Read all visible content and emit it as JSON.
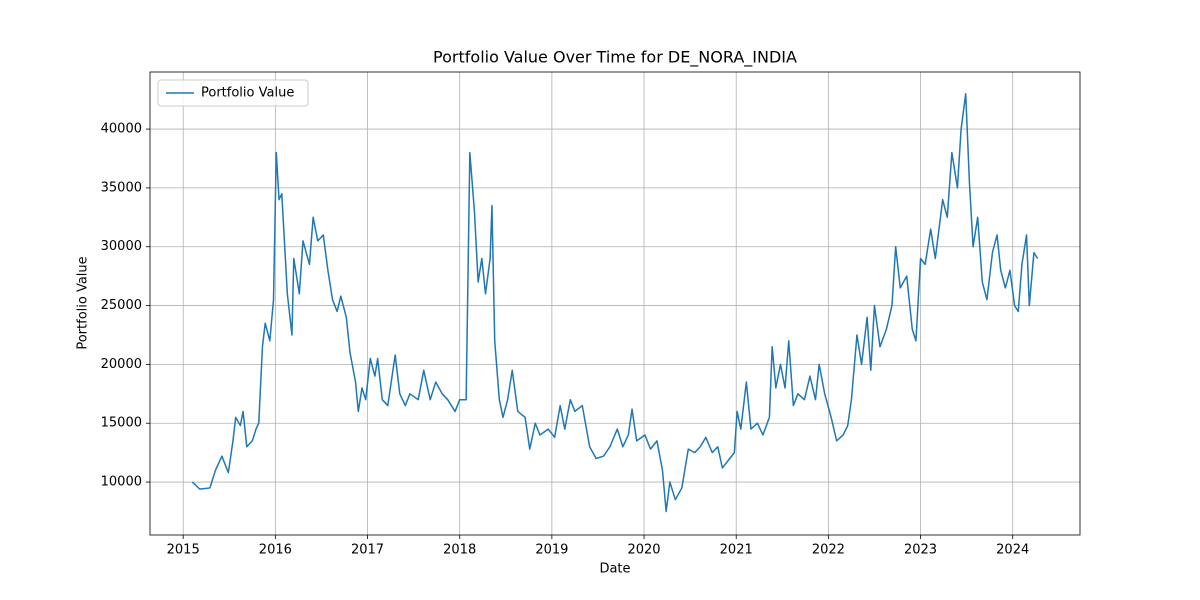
{
  "chart_data": {
    "type": "line",
    "title": "Portfolio Value Over Time for DE_NORA_INDIA",
    "x_label": "Date",
    "y_label": "Portfolio Value",
    "x": [
      2015.1,
      2015.18,
      2015.29,
      2015.35,
      2015.42,
      2015.49,
      2015.54,
      2015.57,
      2015.62,
      2015.65,
      2015.69,
      2015.75,
      2015.79,
      2015.82,
      2015.86,
      2015.89,
      2015.94,
      2015.98,
      2016.01,
      2016.04,
      2016.07,
      2016.13,
      2016.18,
      2016.2,
      2016.26,
      2016.3,
      2016.37,
      2016.41,
      2016.46,
      2016.52,
      2016.57,
      2016.62,
      2016.67,
      2016.71,
      2016.77,
      2016.81,
      2016.87,
      2016.9,
      2016.94,
      2016.98,
      2017.03,
      2017.08,
      2017.11,
      2017.16,
      2017.22,
      2017.3,
      2017.35,
      2017.41,
      2017.46,
      2017.55,
      2017.61,
      2017.68,
      2017.74,
      2017.81,
      2017.87,
      2017.95,
      2018.0,
      2018.07,
      2018.11,
      2018.16,
      2018.2,
      2018.24,
      2018.28,
      2018.33,
      2018.35,
      2018.38,
      2018.43,
      2018.47,
      2018.52,
      2018.57,
      2018.63,
      2018.71,
      2018.76,
      2018.82,
      2018.87,
      2018.96,
      2019.03,
      2019.09,
      2019.14,
      2019.2,
      2019.25,
      2019.33,
      2019.41,
      2019.48,
      2019.56,
      2019.63,
      2019.71,
      2019.77,
      2019.83,
      2019.87,
      2019.92,
      2020.01,
      2020.07,
      2020.14,
      2020.2,
      2020.24,
      2020.28,
      2020.34,
      2020.41,
      2020.48,
      2020.55,
      2020.61,
      2020.67,
      2020.74,
      2020.8,
      2020.85,
      2020.93,
      2020.98,
      2021.01,
      2021.05,
      2021.11,
      2021.16,
      2021.23,
      2021.29,
      2021.36,
      2021.39,
      2021.43,
      2021.48,
      2021.53,
      2021.57,
      2021.62,
      2021.67,
      2021.74,
      2021.8,
      2021.86,
      2021.9,
      2021.96,
      2022.03,
      2022.09,
      2022.16,
      2022.21,
      2022.25,
      2022.31,
      2022.36,
      2022.42,
      2022.46,
      2022.5,
      2022.56,
      2022.63,
      2022.69,
      2022.73,
      2022.78,
      2022.85,
      2022.91,
      2022.95,
      2023.0,
      2023.05,
      2023.11,
      2023.16,
      2023.24,
      2023.29,
      2023.34,
      2023.4,
      2023.44,
      2023.49,
      2023.53,
      2023.57,
      2023.62,
      2023.67,
      2023.72,
      2023.78,
      2023.83,
      2023.87,
      2023.92,
      2023.97,
      2024.02,
      2024.06,
      2024.1,
      2024.15,
      2024.18,
      2024.23,
      2024.27
    ],
    "series": [
      {
        "name": "Portfolio Value",
        "color": "#1f77b4",
        "values": [
          10000,
          9400,
          9500,
          11000,
          12200,
          10800,
          13500,
          15500,
          14800,
          16000,
          13000,
          13500,
          14500,
          15000,
          21500,
          23500,
          22000,
          25500,
          38000,
          34000,
          34500,
          26000,
          22500,
          29000,
          26000,
          30500,
          28500,
          32500,
          30500,
          31000,
          28000,
          25500,
          24500,
          25800,
          24000,
          21000,
          18500,
          16000,
          18000,
          17000,
          20500,
          19000,
          20500,
          17000,
          16500,
          20800,
          17500,
          16500,
          17500,
          17000,
          19500,
          17000,
          18500,
          17500,
          17000,
          16000,
          17000,
          17000,
          38000,
          33000,
          27000,
          29000,
          26000,
          29000,
          33500,
          22000,
          17000,
          15500,
          17000,
          19500,
          16000,
          15500,
          12800,
          15000,
          14000,
          14500,
          13800,
          16500,
          14500,
          17000,
          16000,
          16500,
          13000,
          12000,
          12200,
          13000,
          14500,
          13000,
          14000,
          16200,
          13500,
          14000,
          12800,
          13500,
          11000,
          7500,
          10000,
          8500,
          9500,
          12800,
          12500,
          13000,
          13800,
          12500,
          13000,
          11200,
          12000,
          12500,
          16000,
          14500,
          18500,
          14500,
          15000,
          14000,
          15500,
          21500,
          18000,
          20000,
          18000,
          22000,
          16500,
          17500,
          17000,
          19000,
          17000,
          20000,
          17500,
          15500,
          13500,
          14000,
          14800,
          17000,
          22500,
          20000,
          24000,
          19500,
          25000,
          21500,
          23000,
          25000,
          30000,
          26500,
          27500,
          23000,
          22000,
          29000,
          28500,
          31500,
          29000,
          34000,
          32500,
          38000,
          35000,
          40000,
          43000,
          35500,
          30000,
          32500,
          27000,
          25500,
          29500,
          31000,
          28000,
          26500,
          28000,
          25000,
          24500,
          28500,
          31000,
          25000,
          29500,
          29000
        ]
      }
    ],
    "xlim": [
      2014.64,
      2024.73
    ],
    "xticks": [
      2015,
      2016,
      2017,
      2018,
      2019,
      2020,
      2021,
      2022,
      2023,
      2024
    ],
    "ylim": [
      5500,
      44850
    ],
    "yticks": [
      10000,
      15000,
      20000,
      25000,
      30000,
      35000,
      40000
    ],
    "grid": true,
    "legend": "upper left"
  }
}
